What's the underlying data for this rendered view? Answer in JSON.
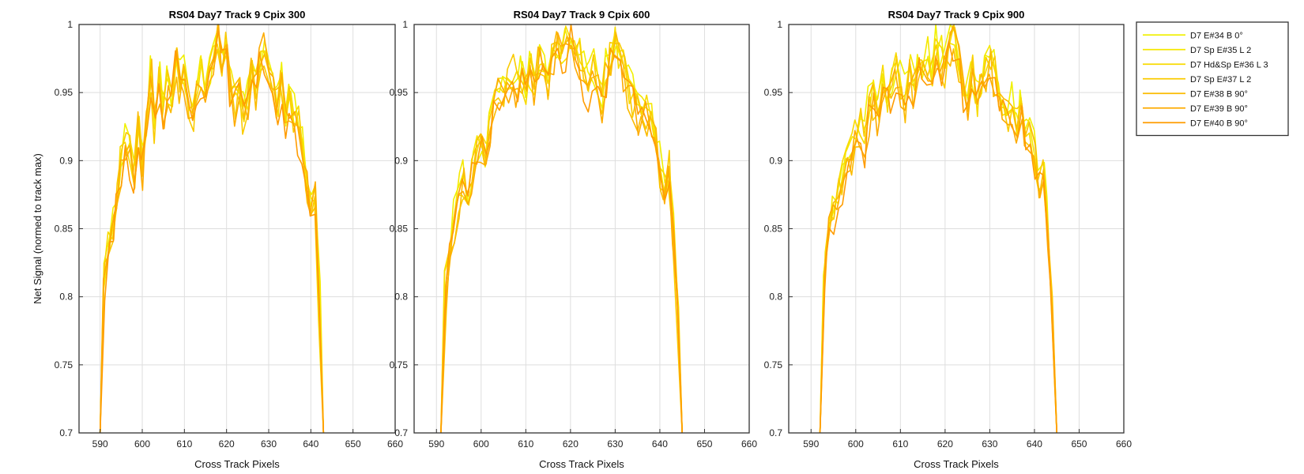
{
  "chart_data": [
    {
      "type": "line",
      "title": "RS04 Day7 Track 9  Cpix 300",
      "xlabel": "Cross Track Pixels",
      "ylabel": "Net Signal (normed to track max)",
      "xlim": [
        585,
        660
      ],
      "ylim": [
        0.7,
        1
      ],
      "xticks": [
        590,
        600,
        610,
        620,
        630,
        640,
        650,
        660
      ],
      "yticks": [
        0.7,
        0.75,
        0.8,
        0.85,
        0.9,
        0.95,
        1
      ],
      "grid": true,
      "representative_profile": {
        "x": [
          590,
          591,
          592,
          593,
          594,
          595,
          596,
          597,
          598,
          599,
          600,
          601,
          602,
          603,
          604,
          605,
          606,
          607,
          608,
          609,
          610,
          611,
          612,
          613,
          614,
          615,
          616,
          617,
          618,
          619,
          620,
          621,
          622,
          623,
          624,
          625,
          626,
          627,
          628,
          629,
          630,
          631,
          632,
          633,
          634,
          635,
          636,
          637,
          638,
          639,
          640,
          641,
          642,
          643
        ],
        "y": [
          0.7,
          0.82,
          0.84,
          0.86,
          0.88,
          0.9,
          0.92,
          0.91,
          0.89,
          0.93,
          0.9,
          0.93,
          0.97,
          0.93,
          0.96,
          0.94,
          0.96,
          0.95,
          0.98,
          0.96,
          0.97,
          0.95,
          0.93,
          0.96,
          0.97,
          0.95,
          0.97,
          0.98,
          1.0,
          0.98,
          0.99,
          0.96,
          0.95,
          0.96,
          0.94,
          0.95,
          0.97,
          0.96,
          0.98,
          0.99,
          0.97,
          0.96,
          0.95,
          0.96,
          0.94,
          0.95,
          0.94,
          0.93,
          0.91,
          0.89,
          0.87,
          0.88,
          0.8,
          0.7
        ]
      },
      "series": [
        {
          "name": "D7 E#34 B 0°",
          "color": "#F0F000"
        },
        {
          "name": "D7 Sp E#35 L 2",
          "color": "#F5E800"
        },
        {
          "name": "D7 Hd&Sp E#36 L 3",
          "color": "#F8DA00"
        },
        {
          "name": "D7 Sp E#37 L 2",
          "color": "#FACB00"
        },
        {
          "name": "D7 E#38 B 90°",
          "color": "#FBBB00"
        },
        {
          "name": "D7 E#39 B 90°",
          "color": "#FDAB00"
        },
        {
          "name": "D7 E#40 B 90°",
          "color": "#FF9C00"
        }
      ]
    },
    {
      "type": "line",
      "title": "RS04 Day7 Track 9  Cpix 600",
      "xlabel": "Cross Track Pixels",
      "ylabel": "",
      "xlim": [
        585,
        660
      ],
      "ylim": [
        0.7,
        1
      ],
      "xticks": [
        590,
        600,
        610,
        620,
        630,
        640,
        650,
        660
      ],
      "yticks": [
        0.7,
        0.75,
        0.8,
        0.85,
        0.9,
        0.95,
        1
      ],
      "grid": true,
      "representative_profile": {
        "x": [
          591,
          592,
          593,
          594,
          595,
          596,
          597,
          598,
          599,
          600,
          601,
          602,
          603,
          604,
          605,
          606,
          607,
          608,
          609,
          610,
          611,
          612,
          613,
          614,
          615,
          616,
          617,
          618,
          619,
          620,
          621,
          622,
          623,
          624,
          625,
          626,
          627,
          628,
          629,
          630,
          631,
          632,
          633,
          634,
          635,
          636,
          637,
          638,
          639,
          640,
          641,
          642,
          643,
          644,
          645
        ],
        "y": [
          0.7,
          0.81,
          0.84,
          0.86,
          0.88,
          0.89,
          0.88,
          0.9,
          0.91,
          0.92,
          0.91,
          0.93,
          0.95,
          0.96,
          0.95,
          0.96,
          0.97,
          0.96,
          0.97,
          0.96,
          0.97,
          0.96,
          0.98,
          0.97,
          0.96,
          0.98,
          0.99,
          0.98,
          0.99,
          1.0,
          0.99,
          0.98,
          0.97,
          0.96,
          0.97,
          0.96,
          0.95,
          0.97,
          0.98,
          0.99,
          0.98,
          0.97,
          0.96,
          0.95,
          0.94,
          0.95,
          0.94,
          0.93,
          0.92,
          0.9,
          0.89,
          0.9,
          0.85,
          0.8,
          0.7
        ]
      },
      "series": [
        {
          "name": "D7 E#34 B 0°",
          "color": "#F0F000"
        },
        {
          "name": "D7 Sp E#35 L 2",
          "color": "#F5E800"
        },
        {
          "name": "D7 Hd&Sp E#36 L 3",
          "color": "#F8DA00"
        },
        {
          "name": "D7 Sp E#37 L 2",
          "color": "#FACB00"
        },
        {
          "name": "D7 E#38 B 90°",
          "color": "#FBBB00"
        },
        {
          "name": "D7 E#39 B 90°",
          "color": "#FDAB00"
        },
        {
          "name": "D7 E#40 B 90°",
          "color": "#FF9C00"
        }
      ]
    },
    {
      "type": "line",
      "title": "RS04 Day7 Track 9  Cpix 900",
      "xlabel": "Cross Track Pixels",
      "ylabel": "",
      "xlim": [
        585,
        660
      ],
      "ylim": [
        0.7,
        1
      ],
      "xticks": [
        590,
        600,
        610,
        620,
        630,
        640,
        650,
        660
      ],
      "yticks": [
        0.7,
        0.75,
        0.8,
        0.85,
        0.9,
        0.95,
        1
      ],
      "grid": true,
      "representative_profile": {
        "x": [
          592,
          593,
          594,
          595,
          596,
          597,
          598,
          599,
          600,
          601,
          602,
          603,
          604,
          605,
          606,
          607,
          608,
          609,
          610,
          611,
          612,
          613,
          614,
          615,
          616,
          617,
          618,
          619,
          620,
          621,
          622,
          623,
          624,
          625,
          626,
          627,
          628,
          629,
          630,
          631,
          632,
          633,
          634,
          635,
          636,
          637,
          638,
          639,
          640,
          641,
          642,
          643,
          644,
          645
        ],
        "y": [
          0.7,
          0.83,
          0.86,
          0.87,
          0.88,
          0.89,
          0.9,
          0.91,
          0.92,
          0.93,
          0.92,
          0.94,
          0.95,
          0.94,
          0.96,
          0.95,
          0.96,
          0.97,
          0.96,
          0.95,
          0.97,
          0.96,
          0.98,
          0.97,
          0.98,
          0.97,
          0.99,
          0.98,
          0.97,
          0.99,
          1.0,
          0.98,
          0.96,
          0.95,
          0.97,
          0.95,
          0.96,
          0.97,
          0.98,
          0.97,
          0.96,
          0.95,
          0.94,
          0.95,
          0.93,
          0.94,
          0.92,
          0.93,
          0.91,
          0.89,
          0.9,
          0.86,
          0.8,
          0.7
        ]
      },
      "series": [
        {
          "name": "D7 E#34 B 0°",
          "color": "#F0F000"
        },
        {
          "name": "D7 Sp E#35 L 2",
          "color": "#F5E800"
        },
        {
          "name": "D7 Hd&Sp E#36 L 3",
          "color": "#F8DA00"
        },
        {
          "name": "D7 Sp E#37 L 2",
          "color": "#FACB00"
        },
        {
          "name": "D7 E#38 B 90°",
          "color": "#FBBB00"
        },
        {
          "name": "D7 E#39 B 90°",
          "color": "#FDAB00"
        },
        {
          "name": "D7 E#40 B 90°",
          "color": "#FF9C00"
        }
      ]
    }
  ],
  "legend": {
    "placement": "outside-right",
    "entries": [
      {
        "label": "D7 E#34 B 0°",
        "color": "#F0F000"
      },
      {
        "label": "D7 Sp E#35 L 2",
        "color": "#F5E800"
      },
      {
        "label": "D7 Hd&Sp E#36 L 3",
        "color": "#F8DA00"
      },
      {
        "label": "D7 Sp E#37 L 2",
        "color": "#FACB00"
      },
      {
        "label": "D7 E#38 B 90°",
        "color": "#FBBB00"
      },
      {
        "label": "D7 E#39 B 90°",
        "color": "#FDAB00"
      },
      {
        "label": "D7 E#40 B 90°",
        "color": "#FF9C00"
      }
    ]
  }
}
